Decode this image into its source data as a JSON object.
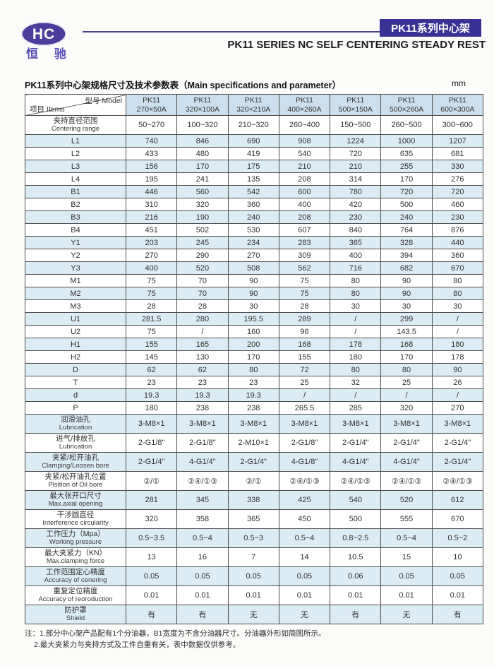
{
  "colors": {
    "accent_purple": "#3a3194",
    "logo_purple": "#4b3d9c",
    "header_row_blue": "#cbdfee",
    "row_tint_blue": "#dcecf5"
  },
  "header": {
    "logo_text": "HC",
    "logo_subtext": "恒 驰",
    "banner": "PK11系列中心架",
    "subtitle": "PK11 SERIES NC SELF CENTERING STEADY REST"
  },
  "table_title": {
    "left": "PK11系列中心架规格尺寸及技术参数表（Main specifications and parameter）",
    "unit": "mm"
  },
  "table": {
    "corner": {
      "top_right": "型号 Model",
      "bottom_left": "项目 Items"
    },
    "columns": [
      {
        "line1": "PK11",
        "line2": "270×50A"
      },
      {
        "line1": "PK11",
        "line2": "320×100A"
      },
      {
        "line1": "PK11",
        "line2": "320×210A"
      },
      {
        "line1": "PK11",
        "line2": "400×260A"
      },
      {
        "line1": "PK11",
        "line2": "500×150A"
      },
      {
        "line1": "PK11",
        "line2": "500×260A"
      },
      {
        "line1": "PK11",
        "line2": "600×300A"
      }
    ],
    "rows": [
      {
        "zh": "夹持直径范围",
        "en": "Centering range",
        "values": [
          "50~270",
          "100~320",
          "210~320",
          "260~400",
          "150~500",
          "260~500",
          "300~600"
        ]
      },
      {
        "zh": "L1",
        "values": [
          "740",
          "846",
          "690",
          "908",
          "1224",
          "1000",
          "1207"
        ]
      },
      {
        "zh": "L2",
        "values": [
          "433",
          "480",
          "419",
          "540",
          "720",
          "635",
          "681"
        ]
      },
      {
        "zh": "L3",
        "values": [
          "156",
          "170",
          "175",
          "210",
          "210",
          "255",
          "330"
        ]
      },
      {
        "zh": "L4",
        "values": [
          "195",
          "241",
          "135",
          "208",
          "314",
          "170",
          "276"
        ]
      },
      {
        "zh": "B1",
        "values": [
          "446",
          "560",
          "542",
          "600",
          "780",
          "720",
          "720"
        ]
      },
      {
        "zh": "B2",
        "values": [
          "310",
          "320",
          "360",
          "400",
          "420",
          "500",
          "460"
        ]
      },
      {
        "zh": "B3",
        "values": [
          "216",
          "190",
          "240",
          "208",
          "230",
          "240",
          "230"
        ]
      },
      {
        "zh": "B4",
        "values": [
          "451",
          "502",
          "530",
          "607",
          "840",
          "764",
          "876"
        ]
      },
      {
        "zh": "Y1",
        "values": [
          "203",
          "245",
          "234",
          "283",
          "365",
          "328",
          "440"
        ]
      },
      {
        "zh": "Y2",
        "values": [
          "270",
          "290",
          "270",
          "309",
          "400",
          "394",
          "360"
        ]
      },
      {
        "zh": "Y3",
        "values": [
          "400",
          "520",
          "508",
          "562",
          "716",
          "682",
          "670"
        ]
      },
      {
        "zh": "M1",
        "values": [
          "75",
          "70",
          "90",
          "75",
          "80",
          "90",
          "80"
        ]
      },
      {
        "zh": "M2",
        "values": [
          "75",
          "70",
          "90",
          "75",
          "80",
          "90",
          "80"
        ]
      },
      {
        "zh": "M3",
        "values": [
          "28",
          "28",
          "30",
          "28",
          "30",
          "30",
          "30"
        ]
      },
      {
        "zh": "U1",
        "values": [
          "281.5",
          "280",
          "195.5",
          "289",
          "/",
          "299",
          "/"
        ]
      },
      {
        "zh": "U2",
        "values": [
          "75",
          "/",
          "160",
          "96",
          "/",
          "143.5",
          "/"
        ]
      },
      {
        "zh": "H1",
        "values": [
          "155",
          "165",
          "200",
          "168",
          "178",
          "168",
          "180"
        ]
      },
      {
        "zh": "H2",
        "values": [
          "145",
          "130",
          "170",
          "155",
          "180",
          "170",
          "178"
        ]
      },
      {
        "zh": "D",
        "values": [
          "62",
          "62",
          "80",
          "72",
          "80",
          "80",
          "90"
        ]
      },
      {
        "zh": "T",
        "values": [
          "23",
          "23",
          "23",
          "25",
          "32",
          "25",
          "26"
        ]
      },
      {
        "zh": "d",
        "values": [
          "19.3",
          "19.3",
          "19.3",
          "/",
          "/",
          "/",
          "/"
        ]
      },
      {
        "zh": "P",
        "values": [
          "180",
          "238",
          "238",
          "265.5",
          "285",
          "320",
          "270"
        ]
      },
      {
        "zh": "润滑油孔",
        "en": "Lubrication",
        "values": [
          "3-M8×1",
          "3-M8×1",
          "3-M8×1",
          "3-M8×1",
          "3-M8×1",
          "3-M8×1",
          "3-M8×1"
        ]
      },
      {
        "zh": "进气/排放孔",
        "en": "Lubrication",
        "values": [
          "2-G1/8\"",
          "2-G1/8\"",
          "2-M10×1",
          "2-G1/8\"",
          "2-G1/4\"",
          "2-G1/4\"",
          "2-G1/4\""
        ]
      },
      {
        "zh": "夹紧/松开油孔",
        "en": "Clamping/Loosen bore",
        "values": [
          "2-G1/4\"",
          "4-G1/4\"",
          "2-G1/4\"",
          "4-G1/8\"",
          "4-G1/4\"",
          "4-G1/4\"",
          "2-G1/4\""
        ]
      },
      {
        "zh": "夹紧/松开油孔位置",
        "en": "Plsition of Oil bore",
        "values": [
          "②/①",
          "②④/①③",
          "②/①",
          "②④/①③",
          "②④/①③",
          "②④/①③",
          "②④/①③"
        ]
      },
      {
        "zh": "最大张开口尺寸",
        "en": "Max.axial opening",
        "values": [
          "281",
          "345",
          "338",
          "425",
          "540",
          "520",
          "612"
        ]
      },
      {
        "zh": "干涉圆直径",
        "en": "Interference circularity",
        "values": [
          "320",
          "358",
          "365",
          "450",
          "500",
          "555",
          "670"
        ]
      },
      {
        "zh": "工作压力（Mpa）",
        "en": "Working pressure",
        "values": [
          "0.5~3.5",
          "0.5~4",
          "0.5~3",
          "0.5~4",
          "0.8~2.5",
          "0.5~4",
          "0.5~2"
        ]
      },
      {
        "zh": "最大夹紧力（KN）",
        "en": "Max.clamping force",
        "values": [
          "13",
          "16",
          "7",
          "14",
          "10.5",
          "15",
          "10"
        ]
      },
      {
        "zh": "工作范围定心精度",
        "en": "Accuracy of cenering",
        "values": [
          "0.05",
          "0.05",
          "0.05",
          "0.05",
          "0.06",
          "0.05",
          "0.05"
        ]
      },
      {
        "zh": "重复定位精度",
        "en": "Accuracy of reoroduction",
        "values": [
          "0.01",
          "0.01",
          "0.01",
          "0.01",
          "0.01",
          "0.01",
          "0.01"
        ]
      },
      {
        "zh": "防护罩",
        "en": "Shield",
        "values": [
          "有",
          "有",
          "无",
          "无",
          "有",
          "无",
          "有"
        ]
      }
    ]
  },
  "notes": {
    "line1": "注：1.部分中心架产品配有1个分油器，B1宽度为不含分油器尺寸。分油器外形如简图所示。",
    "line2": "2.最大夹紧力与夹持方式及工件自重有关，表中数据仅供参考。"
  }
}
